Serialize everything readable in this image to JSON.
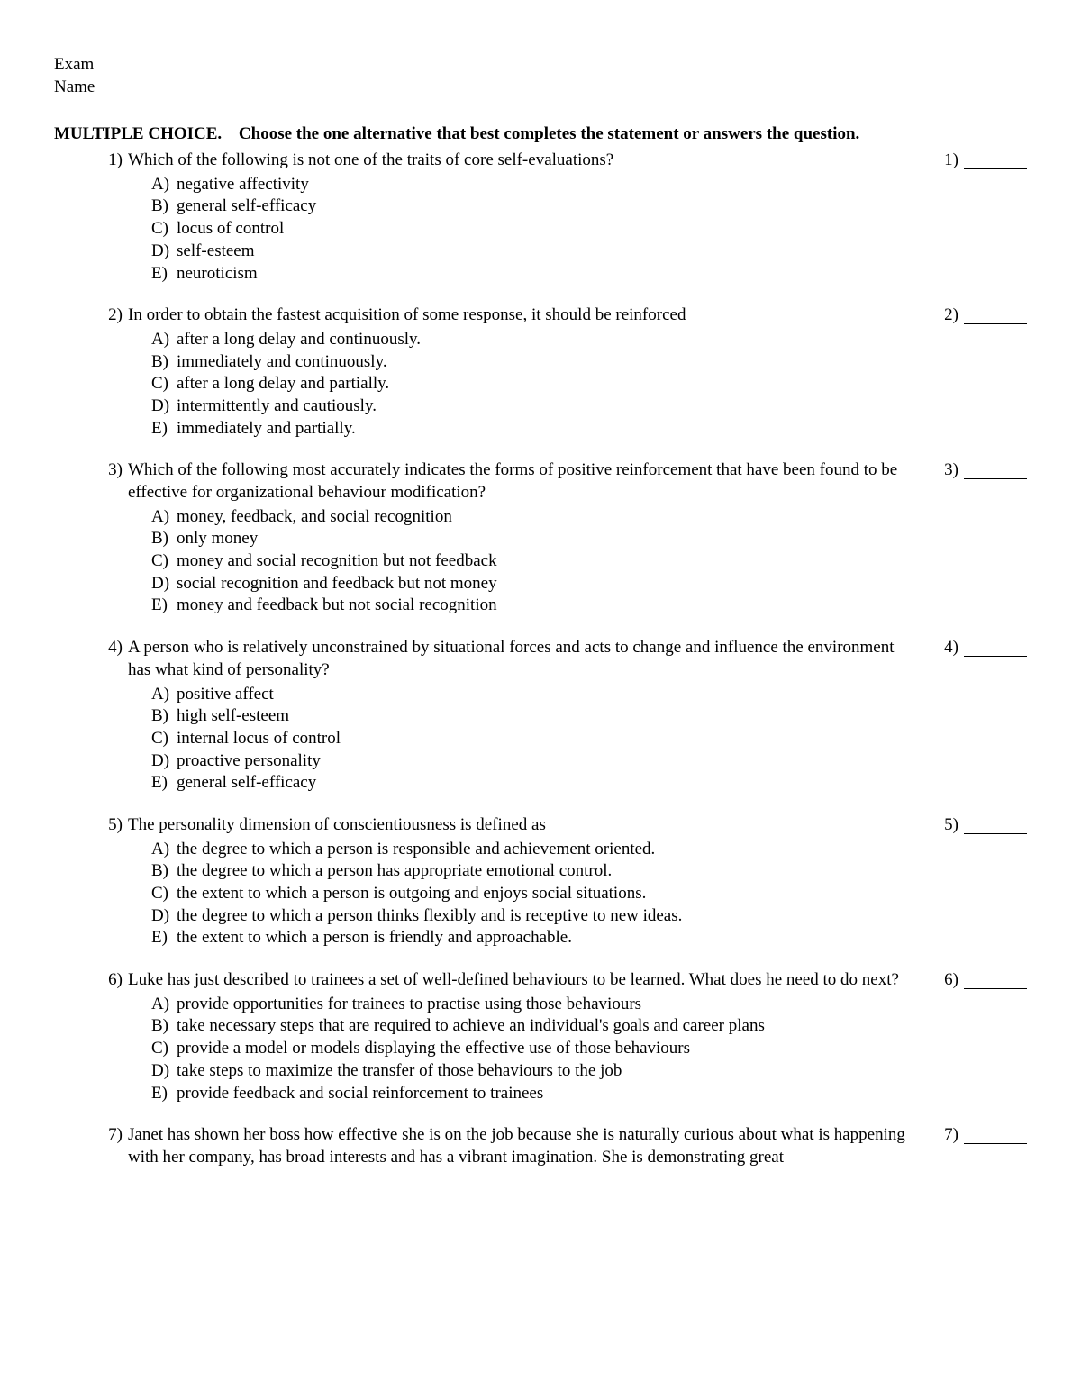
{
  "header": {
    "exam_label": "Exam",
    "name_label": "Name"
  },
  "instruction": {
    "label": "MULTIPLE CHOICE.",
    "text": "Choose the one alternative that best completes the statement or answers the question."
  },
  "questions": [
    {
      "n": "1)",
      "text": "Which of the following is not one of the traits of core self-evaluations?",
      "answer_n": "1)",
      "options": [
        {
          "l": "A)",
          "t": "negative affectivity"
        },
        {
          "l": "B)",
          "t": "general self-efficacy"
        },
        {
          "l": "C)",
          "t": "locus of control"
        },
        {
          "l": "D)",
          "t": "self-esteem"
        },
        {
          "l": "E)",
          "t": "neuroticism"
        }
      ]
    },
    {
      "n": "2)",
      "text": "In order to obtain the fastest acquisition of some response, it should be reinforced",
      "answer_n": "2)",
      "options": [
        {
          "l": "A)",
          "t": "after a long delay and continuously."
        },
        {
          "l": "B)",
          "t": "immediately and continuously."
        },
        {
          "l": "C)",
          "t": "after a long delay and partially."
        },
        {
          "l": "D)",
          "t": "intermittently and cautiously."
        },
        {
          "l": "E)",
          "t": "immediately and partially."
        }
      ]
    },
    {
      "n": "3)",
      "text": "Which of the following most accurately indicates the forms of positive reinforcement that have been found to be effective for organizational behaviour modification?",
      "answer_n": "3)",
      "options": [
        {
          "l": "A)",
          "t": "money, feedback, and social recognition"
        },
        {
          "l": "B)",
          "t": "only money"
        },
        {
          "l": "C)",
          "t": "money and social recognition but not feedback"
        },
        {
          "l": "D)",
          "t": "social recognition and feedback but not money"
        },
        {
          "l": "E)",
          "t": "money and feedback but not social recognition"
        }
      ]
    },
    {
      "n": "4)",
      "text": "A person who is relatively unconstrained by situational forces and acts to change and influence the environment has what kind of personality?",
      "answer_n": "4)",
      "options": [
        {
          "l": "A)",
          "t": "positive affect"
        },
        {
          "l": "B)",
          "t": "high self-esteem"
        },
        {
          "l": "C)",
          "t": "internal locus of control"
        },
        {
          "l": "D)",
          "t": "proactive personality"
        },
        {
          "l": "E)",
          "t": "general self-efficacy"
        }
      ]
    },
    {
      "n": "5)",
      "text_pre": "The personality dimension of ",
      "text_underlined": "conscientiousness",
      "text_post": " is defined as",
      "answer_n": "5)",
      "options": [
        {
          "l": "A)",
          "t": "the degree to which a person is responsible and achievement oriented."
        },
        {
          "l": "B)",
          "t": "the degree to which a person has appropriate emotional control."
        },
        {
          "l": "C)",
          "t": "the extent to which a person is outgoing and enjoys social situations."
        },
        {
          "l": "D)",
          "t": "the degree to which a person thinks flexibly and is receptive to new ideas."
        },
        {
          "l": "E)",
          "t": "the extent to which a person is friendly and approachable."
        }
      ]
    },
    {
      "n": "6)",
      "text": "Luke has just described to trainees a set of well-defined behaviours to be learned. What does he need to do next?",
      "answer_n": "6)",
      "options": [
        {
          "l": "A)",
          "t": "provide opportunities for trainees to practise using those behaviours"
        },
        {
          "l": "B)",
          "t": "take necessary steps that are required to achieve an individual's goals and career plans"
        },
        {
          "l": "C)",
          "t": "provide a model or models displaying the effective use of those behaviours"
        },
        {
          "l": "D)",
          "t": "take steps to maximize the transfer of those behaviours to the job"
        },
        {
          "l": "E)",
          "t": "provide feedback and social reinforcement to trainees"
        }
      ]
    },
    {
      "n": "7)",
      "text": "Janet has shown her boss how effective she is on the job because she is naturally curious about what is happening with her company, has broad interests and has a vibrant imagination. She is demonstrating great",
      "answer_n": "7)",
      "options": []
    }
  ]
}
